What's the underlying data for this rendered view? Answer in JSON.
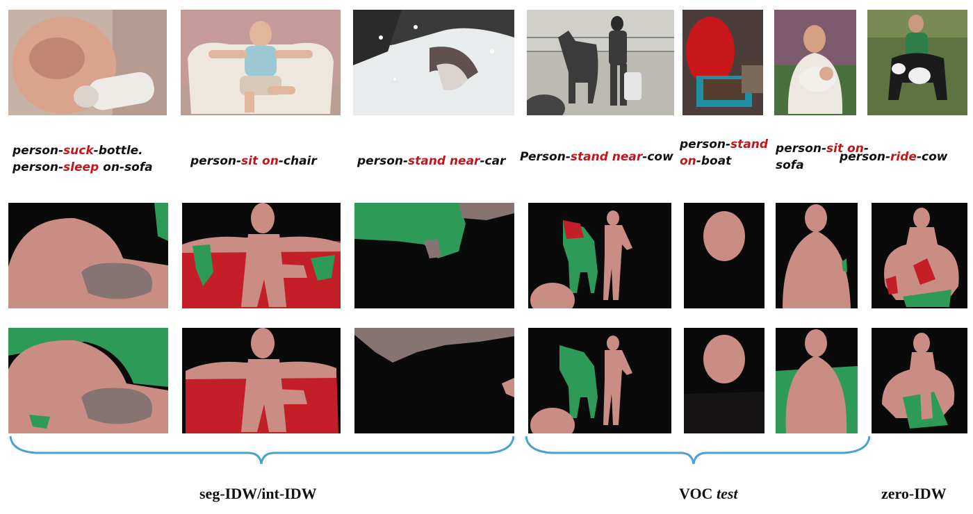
{
  "colors": {
    "person": "#c98d84",
    "object_green": "#2e9a57",
    "object_red": "#c41f28",
    "object_gray": "#857472",
    "background": "#0a0a0a",
    "verb_text": "#c0171c",
    "brace": "#4aa0d0"
  },
  "captions": [
    {
      "lines": [
        [
          {
            "t": "person-"
          },
          {
            "t": "suck",
            "v": true
          },
          {
            "t": "-bottle."
          }
        ],
        [
          {
            "t": "person-"
          },
          {
            "t": "sleep",
            "v": true
          },
          {
            "t": " on-sofa"
          }
        ]
      ]
    },
    {
      "lines": [
        [
          {
            "t": "person-"
          },
          {
            "t": "sit on",
            "v": true
          },
          {
            "t": "-chair"
          }
        ]
      ]
    },
    {
      "lines": [
        [
          {
            "t": "person-"
          },
          {
            "t": "stand near",
            "v": true
          },
          {
            "t": "-car"
          }
        ]
      ]
    },
    {
      "lines": [
        [
          {
            "t": "Person-"
          },
          {
            "t": "stand near",
            "v": true
          },
          {
            "t": "-cow"
          }
        ]
      ]
    },
    {
      "lines": [
        [
          {
            "t": "person-"
          },
          {
            "t": "stand",
            "v": true
          }
        ],
        [
          {
            "t": "on",
            "v": true
          },
          {
            "t": "-boat"
          }
        ]
      ]
    },
    {
      "lines": [
        [
          {
            "t": "person-"
          },
          {
            "t": "sit on",
            "v": true
          },
          {
            "t": "-"
          }
        ],
        [
          {
            "t": "sofa"
          }
        ]
      ]
    },
    {
      "lines": [
        [
          {
            "t": "person-"
          },
          {
            "t": "ride",
            "v": true
          },
          {
            "t": "-cow"
          }
        ]
      ]
    }
  ],
  "groups": {
    "seg_int": "seg-IDW/int-IDW",
    "voc_prefix": "VOC ",
    "voc_italic": "test",
    "zero": "zero-IDW"
  }
}
